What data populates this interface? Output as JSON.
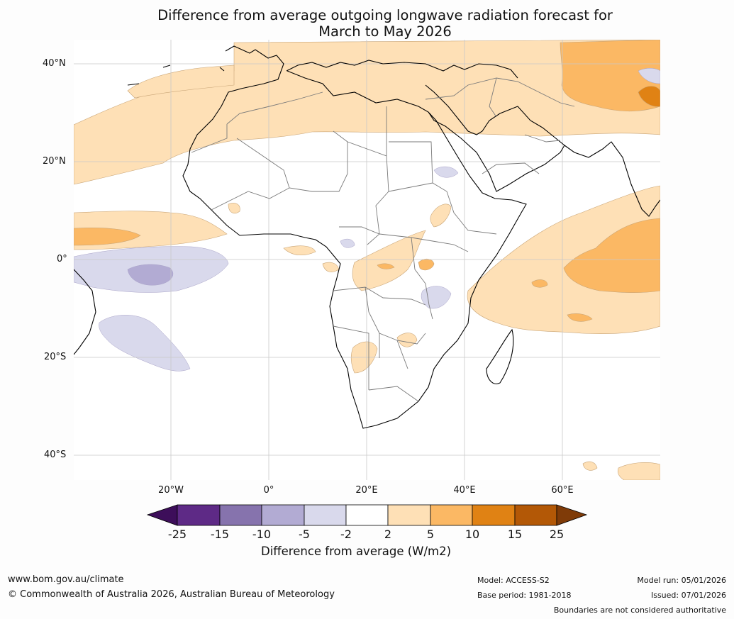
{
  "title": {
    "line1": "Difference from average outgoing longwave radiation forecast for",
    "line2": "March to May 2026"
  },
  "map": {
    "lat_labels": [
      "40°N",
      "20°N",
      "0°",
      "20°S",
      "40°S"
    ],
    "lon_labels": [
      "20°W",
      "0°",
      "20°E",
      "40°E",
      "60°E"
    ]
  },
  "colorbar": {
    "ticks": [
      "-25",
      "-15",
      "-10",
      "-5",
      "-2",
      "2",
      "5",
      "10",
      "15",
      "25"
    ],
    "colors": [
      "#3d0e5a",
      "#5e2a86",
      "#8673ad",
      "#b2abd3",
      "#d9d9ec",
      "#ffffff",
      "#fee0b6",
      "#fbb864",
      "#e08214",
      "#b35806",
      "#7f3b08"
    ],
    "title": "Difference from average (W/m2)"
  },
  "footer": {
    "website": "www.bom.gov.au/climate",
    "copyright": "© Commonwealth of Australia 2026, Australian Bureau of Meteorology",
    "model": "Model: ACCESS-S2",
    "base_period": "Base period: 1981-2018",
    "model_run": "Model run: 05/01/2026",
    "issued": "Issued: 07/01/2026",
    "disclaimer": "Boundaries are not considered authoritative"
  }
}
